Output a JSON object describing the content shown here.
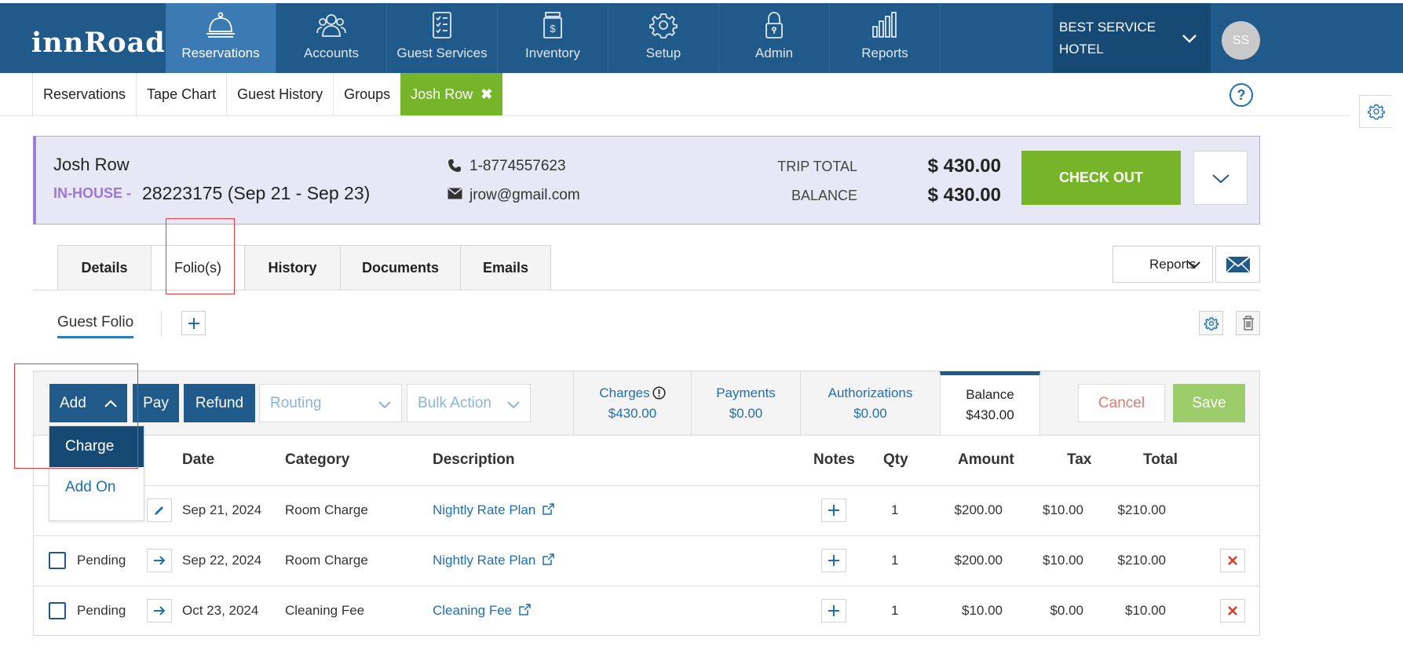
{
  "app": {
    "logo": "innRoad"
  },
  "nav": {
    "items": [
      {
        "label": "Reservations",
        "icon": "bell-icon"
      },
      {
        "label": "Accounts",
        "icon": "people-icon"
      },
      {
        "label": "Guest Services",
        "icon": "checklist-icon"
      },
      {
        "label": "Inventory",
        "icon": "dollar-box-icon"
      },
      {
        "label": "Setup",
        "icon": "gear-icon"
      },
      {
        "label": "Admin",
        "icon": "lock-icon"
      },
      {
        "label": "Reports",
        "icon": "bar-chart-icon"
      }
    ],
    "active_index": 0,
    "hotel_line1": "BEST SERVICE",
    "hotel_line2": "HOTEL",
    "avatar_initials": "SS"
  },
  "subtabs": {
    "items": [
      "Reservations",
      "Tape Chart",
      "Guest History",
      "Groups"
    ],
    "open_tab": "Josh Row"
  },
  "guest": {
    "name": "Josh Row",
    "status": "IN-HOUSE -",
    "reservation": "28223175 (Sep 21 - Sep 23)",
    "phone": "1-8774557623",
    "email": "jrow@gmail.com",
    "trip_total_label": "TRIP TOTAL",
    "trip_total": "$ 430.00",
    "balance_label": "BALANCE",
    "balance": "$ 430.00",
    "checkout_label": "CHECK OUT"
  },
  "detail_tabs": {
    "items": [
      "Details",
      "Folio(s)",
      "History",
      "Documents",
      "Emails"
    ],
    "active_index": 1,
    "reports_label": "Reports"
  },
  "folio": {
    "name": "Guest Folio"
  },
  "toolbar": {
    "add_label": "Add",
    "pay_label": "Pay",
    "refund_label": "Refund",
    "routing_placeholder": "Routing",
    "bulk_action_placeholder": "Bulk Action",
    "cancel_label": "Cancel",
    "save_label": "Save"
  },
  "summary": {
    "charges_label": "Charges",
    "charges_value": "$430.00",
    "payments_label": "Payments",
    "payments_value": "$0.00",
    "authorizations_label": "Authorizations",
    "authorizations_value": "$0.00",
    "balance_label": "Balance",
    "balance_value": "$430.00"
  },
  "add_menu": {
    "items": [
      "Charge",
      "Add On"
    ],
    "active_index": 0
  },
  "table": {
    "columns": [
      "Date",
      "Category",
      "Description",
      "Notes",
      "Qty",
      "Amount",
      "Tax",
      "Total"
    ],
    "rows": [
      {
        "status": "",
        "date": "Sep 21, 2024",
        "category": "Room Charge",
        "description": "Nightly Rate Plan",
        "qty": "1",
        "amount": "$200.00",
        "tax": "$10.00",
        "total": "$210.00",
        "action": "edit"
      },
      {
        "status": "Pending",
        "date": "Sep 22, 2024",
        "category": "Room Charge",
        "description": "Nightly Rate Plan",
        "qty": "1",
        "amount": "$200.00",
        "tax": "$10.00",
        "total": "$210.00",
        "action": "post"
      },
      {
        "status": "Pending",
        "date": "Oct 23, 2024",
        "category": "Cleaning Fee",
        "description": "Cleaning Fee",
        "qty": "1",
        "amount": "$10.00",
        "tax": "$0.00",
        "total": "$10.00",
        "action": "post"
      }
    ]
  },
  "colors": {
    "nav_bg": "#1f5a8a",
    "nav_active": "#3b7ab2",
    "accent_green": "#76b52a",
    "link_blue": "#1f6fb0",
    "status_purple": "#9b78d6",
    "highlight_red": "#e8393e"
  }
}
